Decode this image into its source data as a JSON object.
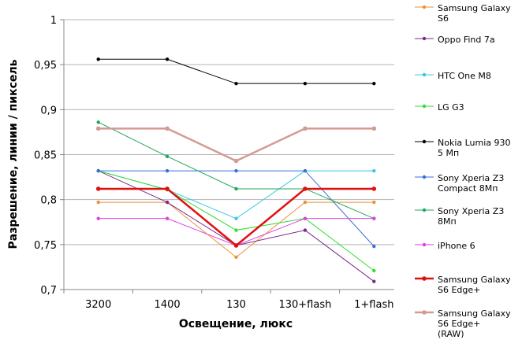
{
  "chart_data": {
    "type": "line",
    "categories": [
      "3200",
      "1400",
      "130",
      "130+flash",
      "1+flash"
    ],
    "ylabel": "Разрешение,  линии / пиксель",
    "xlabel": "Освещение,  люкс",
    "ylim": [
      0.7,
      1
    ],
    "yticks": [
      0.7,
      0.75,
      0.8,
      0.85,
      0.9,
      0.95,
      1
    ],
    "ytick_labels": [
      "0,7",
      "0,75",
      "0,8",
      "0,85",
      "0,9",
      "0,95",
      "1"
    ],
    "grid": "horizontal",
    "legend_position": "right",
    "series": [
      {
        "name": "Samsung Galaxy S6",
        "color": "#e8923a",
        "width": 1,
        "values": [
          0.797,
          0.797,
          0.736,
          0.797,
          0.797
        ]
      },
      {
        "name": "Oppo Find 7a",
        "color": "#7b2a8a",
        "width": 1,
        "values": [
          0.832,
          0.797,
          0.749,
          0.766,
          0.709
        ]
      },
      {
        "name": "HTC One M8",
        "color": "#38c8e0",
        "width": 1,
        "values": [
          0.832,
          0.811,
          0.779,
          0.832,
          0.832
        ]
      },
      {
        "name": "LG G3",
        "color": "#33dd33",
        "width": 1,
        "values": [
          0.832,
          0.811,
          0.766,
          0.779,
          0.721
        ]
      },
      {
        "name": "Nokia Lumia 930 5 Мп",
        "color": "#000000",
        "width": 1,
        "values": [
          0.956,
          0.956,
          0.929,
          0.929,
          0.929
        ]
      },
      {
        "name": "Sony Xperia Z3 Compact 8Мп",
        "color": "#3a6fd8",
        "width": 1,
        "values": [
          0.832,
          0.832,
          0.832,
          0.832,
          0.748
        ]
      },
      {
        "name": "Sony Xperia Z3 8Мп",
        "color": "#1fa85a",
        "width": 1,
        "values": [
          0.886,
          0.848,
          0.812,
          0.812,
          0.779
        ]
      },
      {
        "name": "iPhone 6",
        "color": "#e040e0",
        "width": 1,
        "values": [
          0.779,
          0.779,
          0.749,
          0.779,
          0.779
        ]
      },
      {
        "name": "Samsung Galaxy S6 Edge+",
        "color": "#e01010",
        "width": 2.5,
        "values": [
          0.812,
          0.812,
          0.749,
          0.812,
          0.812
        ]
      },
      {
        "name": "Samsung Galaxy S6 Edge+ (RAW)",
        "color": "#d49a94",
        "width": 2.5,
        "values": [
          0.879,
          0.879,
          0.843,
          0.879,
          0.879
        ]
      }
    ]
  },
  "legend": {
    "items": [
      {
        "lines": [
          "Samsung Galaxy",
          "S6"
        ]
      },
      {
        "lines": [
          "Oppo Find 7a"
        ]
      },
      {
        "lines": [
          "HTC One M8"
        ]
      },
      {
        "lines": [
          "LG G3"
        ]
      },
      {
        "lines": [
          "Nokia Lumia 930",
          "5 Мп"
        ]
      },
      {
        "lines": [
          "Sony Xperia Z3",
          "Compact 8Мп"
        ]
      },
      {
        "lines": [
          "Sony Xperia Z3",
          "8Мп"
        ]
      },
      {
        "lines": [
          "iPhone 6"
        ]
      },
      {
        "lines": [
          "Samsung Galaxy",
          "S6 Edge+"
        ]
      },
      {
        "lines": [
          "Samsung Galaxy",
          "S6 Edge+",
          "(RAW)"
        ]
      }
    ]
  }
}
